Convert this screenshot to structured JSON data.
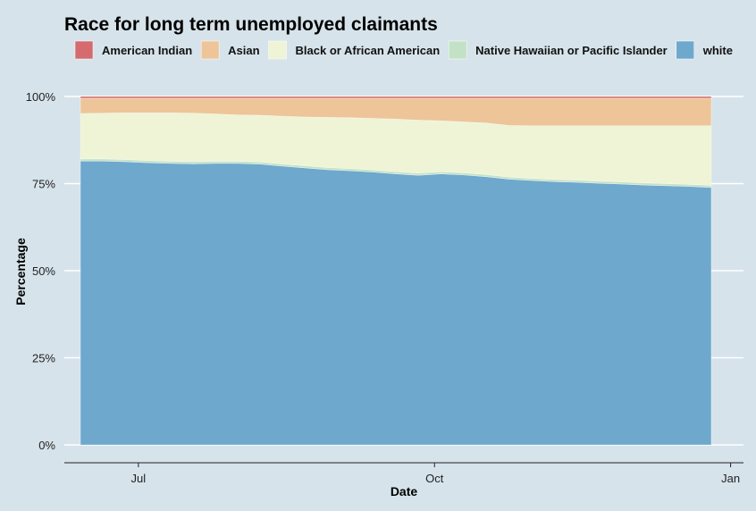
{
  "chart_data": {
    "type": "area",
    "stacked": true,
    "normalized": true,
    "title": "Race for long term unemployed claimants",
    "xlabel": "Date",
    "ylabel": "Percentage",
    "ylim": [
      0,
      100
    ],
    "yticks": [
      "0%",
      "25%",
      "50%",
      "75%",
      "100%"
    ],
    "ytick_values": [
      0,
      25,
      50,
      75,
      100
    ],
    "xticks": [
      "Jul",
      "Oct",
      "Jan"
    ],
    "xtick_dates": [
      "2020-07-01",
      "2020-10-01",
      "2021-01-01"
    ],
    "xlim": [
      "2020-06-08",
      "2021-01-05"
    ],
    "legend_position": "top",
    "grid": true,
    "x": [
      "2020-06-13",
      "2020-06-20",
      "2020-06-27",
      "2020-07-04",
      "2020-07-11",
      "2020-07-18",
      "2020-07-25",
      "2020-08-01",
      "2020-08-08",
      "2020-08-15",
      "2020-08-22",
      "2020-08-29",
      "2020-09-05",
      "2020-09-12",
      "2020-09-19",
      "2020-09-26",
      "2020-10-03",
      "2020-10-10",
      "2020-10-17",
      "2020-10-24",
      "2020-10-31",
      "2020-11-07",
      "2020-11-14",
      "2020-11-21",
      "2020-11-28",
      "2020-12-05",
      "2020-12-12",
      "2020-12-19",
      "2020-12-26"
    ],
    "series": [
      {
        "name": "white",
        "color": "#6fa8cd",
        "values": [
          81.5,
          81.5,
          81.3,
          81.0,
          80.8,
          80.7,
          80.8,
          80.8,
          80.6,
          80.0,
          79.5,
          79.0,
          78.7,
          78.3,
          77.8,
          77.4,
          77.8,
          77.5,
          77.0,
          76.3,
          75.9,
          75.6,
          75.4,
          75.1,
          74.9,
          74.6,
          74.4,
          74.2,
          73.9
        ]
      },
      {
        "name": "Native Hawaiian or Pacific Islander",
        "color": "#c3e2c5",
        "values": [
          0.6,
          0.6,
          0.6,
          0.6,
          0.6,
          0.6,
          0.6,
          0.6,
          0.6,
          0.6,
          0.6,
          0.6,
          0.6,
          0.6,
          0.6,
          0.6,
          0.6,
          0.6,
          0.6,
          0.6,
          0.6,
          0.6,
          0.6,
          0.6,
          0.6,
          0.6,
          0.6,
          0.6,
          0.6
        ]
      },
      {
        "name": "Black or African American",
        "color": "#eef4d5",
        "values": [
          13.0,
          13.1,
          13.4,
          13.7,
          13.9,
          13.9,
          13.6,
          13.3,
          13.4,
          13.7,
          14.0,
          14.4,
          14.6,
          14.8,
          15.1,
          15.2,
          14.6,
          14.6,
          14.8,
          14.8,
          15.1,
          15.4,
          15.6,
          15.9,
          16.1,
          16.4,
          16.6,
          16.8,
          17.1
        ]
      },
      {
        "name": "Asian",
        "color": "#edc599",
        "values": [
          4.4,
          4.3,
          4.2,
          4.2,
          4.2,
          4.3,
          4.5,
          4.8,
          4.9,
          5.2,
          5.4,
          5.5,
          5.6,
          5.8,
          6.0,
          6.3,
          6.5,
          6.8,
          7.1,
          7.8,
          7.9,
          7.9,
          7.9,
          7.9,
          7.9,
          7.9,
          7.9,
          7.9,
          7.9
        ]
      },
      {
        "name": "American Indian",
        "color": "#d56b6f",
        "values": [
          0.5,
          0.5,
          0.5,
          0.5,
          0.5,
          0.5,
          0.5,
          0.5,
          0.5,
          0.5,
          0.5,
          0.5,
          0.5,
          0.5,
          0.5,
          0.5,
          0.5,
          0.5,
          0.5,
          0.5,
          0.5,
          0.5,
          0.5,
          0.5,
          0.5,
          0.5,
          0.5,
          0.5,
          0.5
        ]
      }
    ],
    "legend": [
      {
        "name": "American Indian",
        "color": "#d56b6f"
      },
      {
        "name": "Asian",
        "color": "#edc599"
      },
      {
        "name": "Black or African American",
        "color": "#eef4d5"
      },
      {
        "name": "Native Hawaiian or Pacific Islander",
        "color": "#c3e2c5"
      },
      {
        "name": "white",
        "color": "#6fa8cd"
      }
    ]
  }
}
